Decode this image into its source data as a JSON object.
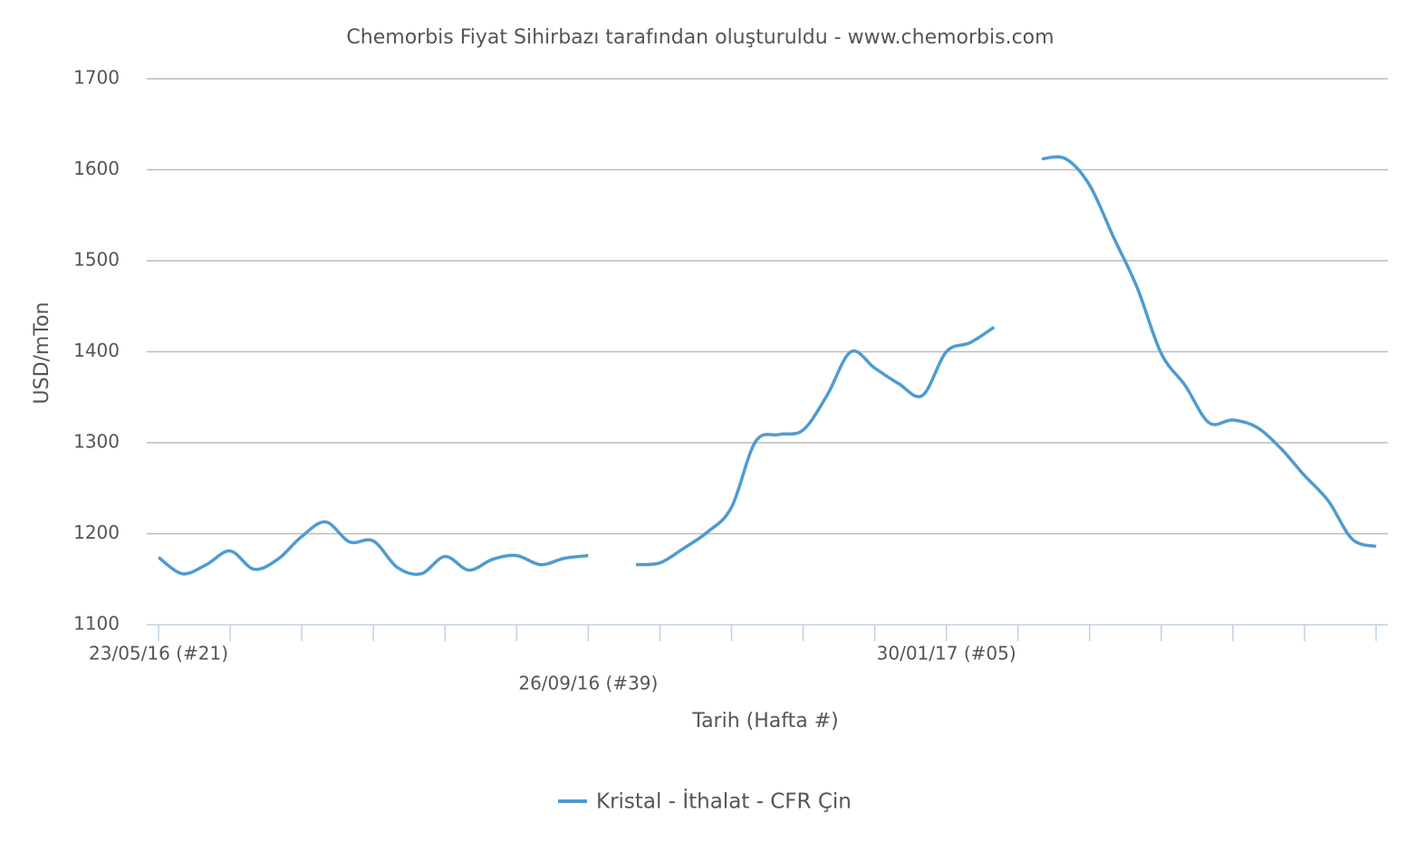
{
  "chart_data": {
    "type": "line",
    "title": "Chemorbis Fiyat Sihirbazı tarafından oluşturuldu - www.chemorbis.com",
    "x_label": "Tarih (Hafta #)",
    "y_label": "USD/mTon",
    "categories": [
      "23/05/16 (#21)",
      null,
      null,
      null,
      null,
      null,
      null,
      null,
      null,
      null,
      null,
      null,
      null,
      null,
      null,
      null,
      null,
      null,
      "26/09/16 (#39)",
      null,
      null,
      null,
      null,
      null,
      null,
      null,
      null,
      null,
      null,
      null,
      null,
      null,
      null,
      "30/01/17 (#05)",
      null,
      null,
      null,
      null,
      null,
      null,
      null,
      null,
      null,
      null,
      null,
      null,
      null,
      null,
      null,
      null,
      null,
      null
    ],
    "series": [
      {
        "name": "Kristal - İthalat - CFR Çin",
        "color": "#4f9bd0",
        "values": [
          1174,
          1156,
          1166,
          1181,
          1161,
          1172,
          1197,
          1213,
          1191,
          1192,
          1163,
          1156,
          1175,
          1160,
          1172,
          1176,
          1166,
          1173,
          1176,
          null,
          1166,
          1168,
          1184,
          1202,
          1229,
          1301,
          1309,
          1314,
          1352,
          1400,
          1382,
          1365,
          1352,
          1400,
          1410,
          1427,
          null,
          1612,
          1612,
          1583,
          1526,
          1470,
          1398,
          1363,
          1322,
          1325,
          1317,
          1294,
          1264,
          1236,
          1194,
          1186
        ]
      }
    ],
    "ylim": [
      1100,
      1700
    ],
    "yticks": [
      1100,
      1200,
      1300,
      1400,
      1500,
      1600,
      1700
    ],
    "grid": true,
    "legend": "bottom"
  }
}
